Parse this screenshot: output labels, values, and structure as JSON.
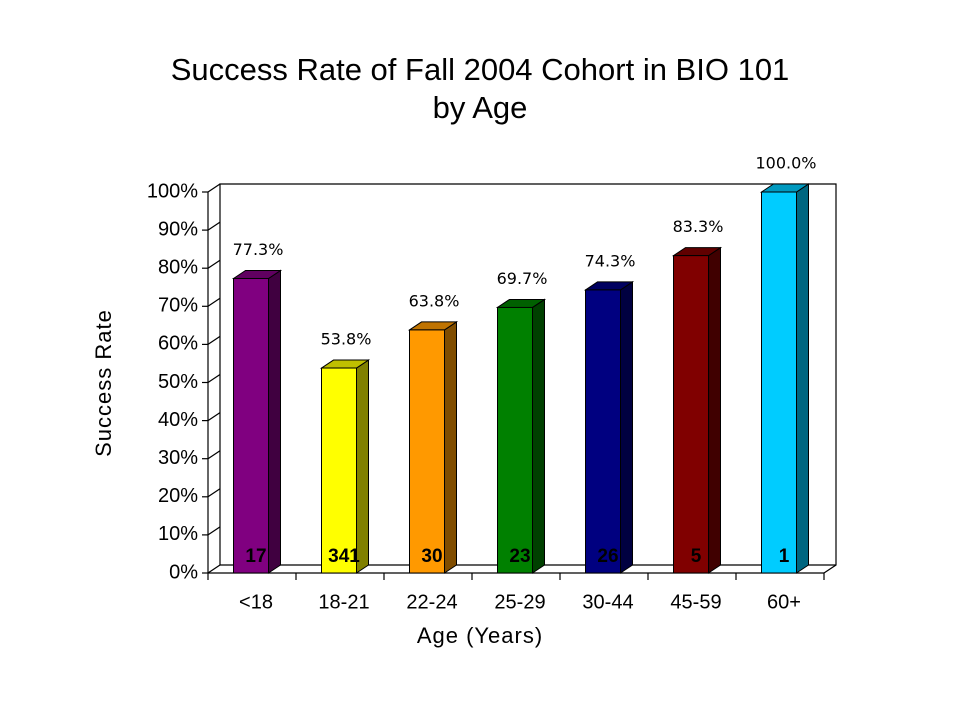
{
  "chart_data": {
    "type": "bar3d",
    "title": [
      "Success Rate of Fall 2004 Cohort in BIO 101",
      "by Age"
    ],
    "x_label": "Age (Years)",
    "y_label": "Success Rate",
    "categories": [
      "<18",
      "18-21",
      "22-24",
      "25-29",
      "30-44",
      "45-59",
      "60+"
    ],
    "values": [
      77.3,
      53.8,
      63.8,
      69.7,
      74.3,
      83.3,
      100.0
    ],
    "value_labels": [
      "77.3%",
      "53.8%",
      "63.8%",
      "69.7%",
      "74.3%",
      "83.3%",
      "100.0%"
    ],
    "counts": [
      17,
      341,
      30,
      23,
      26,
      5,
      1
    ],
    "colors": [
      "#800080",
      "#ffff00",
      "#ff9900",
      "#008000",
      "#000080",
      "#800000",
      "#00ccff"
    ],
    "ylim": [
      0,
      100
    ],
    "yticks": [
      {
        "value": 0,
        "label": "0%"
      },
      {
        "value": 10,
        "label": "10%"
      },
      {
        "value": 20,
        "label": "20%"
      },
      {
        "value": 30,
        "label": "30%"
      },
      {
        "value": 40,
        "label": "40%"
      },
      {
        "value": 50,
        "label": "50%"
      },
      {
        "value": 60,
        "label": "60%"
      },
      {
        "value": 70,
        "label": "70%"
      },
      {
        "value": 80,
        "label": "80%"
      },
      {
        "value": 90,
        "label": "90%"
      },
      {
        "value": 100,
        "label": "100%"
      }
    ]
  }
}
